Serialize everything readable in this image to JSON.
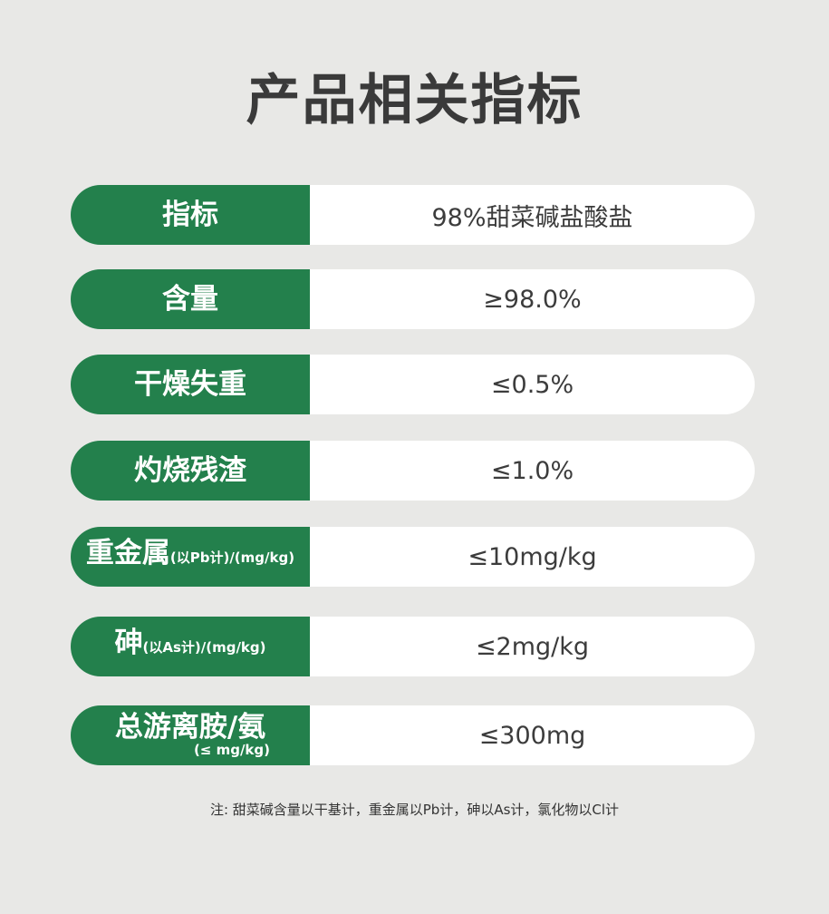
{
  "title": "产品相关指标",
  "rows": [
    {
      "label": "指标",
      "sub": "",
      "value": "98%甜菜碱盐酸盐"
    },
    {
      "label": "含量",
      "sub": "",
      "value": "≥98.0%"
    },
    {
      "label": "干燥失重",
      "sub": "",
      "value": "≤0.5%"
    },
    {
      "label": "灼烧残渣",
      "sub": "",
      "value": "≤1.0%"
    },
    {
      "label": "重金属",
      "sub": "(以Pb计)/(mg/kg)",
      "value": "≤10mg/kg"
    },
    {
      "label": "砷",
      "sub": "(以As计)/(mg/kg)",
      "value": "≤2mg/kg"
    },
    {
      "label": "总游离胺/氨",
      "sub": "(≤ mg/kg)",
      "value": "≤300mg"
    }
  ],
  "note": "注: 甜菜碱含量以干基计，重金属以Pb计，砷以As计，氯化物以Cl计",
  "colors": {
    "accent": "#23804c",
    "background": "#e8e8e6"
  }
}
